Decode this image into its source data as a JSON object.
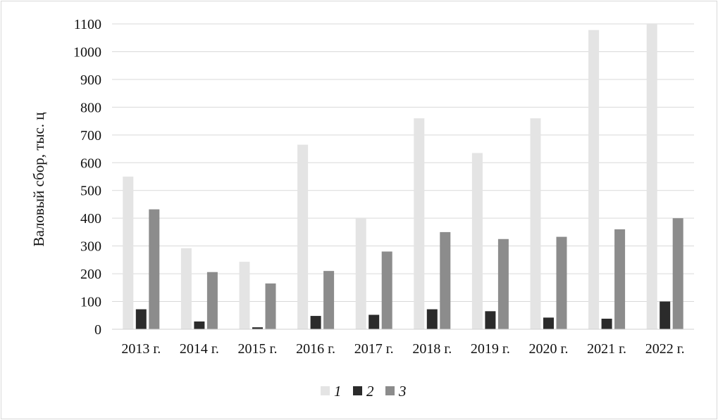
{
  "chart_data": {
    "type": "bar",
    "title": "",
    "xlabel": "",
    "ylabel": "Валовый сбор, тыс. ц",
    "ylim": [
      0,
      1100
    ],
    "yticks": [
      0,
      100,
      200,
      300,
      400,
      500,
      600,
      700,
      800,
      900,
      1000,
      1100
    ],
    "grid": true,
    "legend_position": "bottom",
    "categories": [
      "2013 г.",
      "2014 г.",
      "2015 г.",
      "2016 г.",
      "2017 г.",
      "2018 г.",
      "2019 г.",
      "2020 г.",
      "2021 г.",
      "2022 г."
    ],
    "series": [
      {
        "name": "1",
        "color": "#e4e4e4",
        "values": [
          550,
          292,
          243,
          665,
          402,
          760,
          635,
          760,
          1078,
          1103
        ]
      },
      {
        "name": "2",
        "color": "#2b2b2b",
        "values": [
          72,
          28,
          7,
          48,
          52,
          72,
          65,
          42,
          38,
          100
        ]
      },
      {
        "name": "3",
        "color": "#8c8c8c",
        "values": [
          432,
          206,
          165,
          210,
          280,
          350,
          325,
          333,
          360,
          400
        ]
      }
    ]
  }
}
